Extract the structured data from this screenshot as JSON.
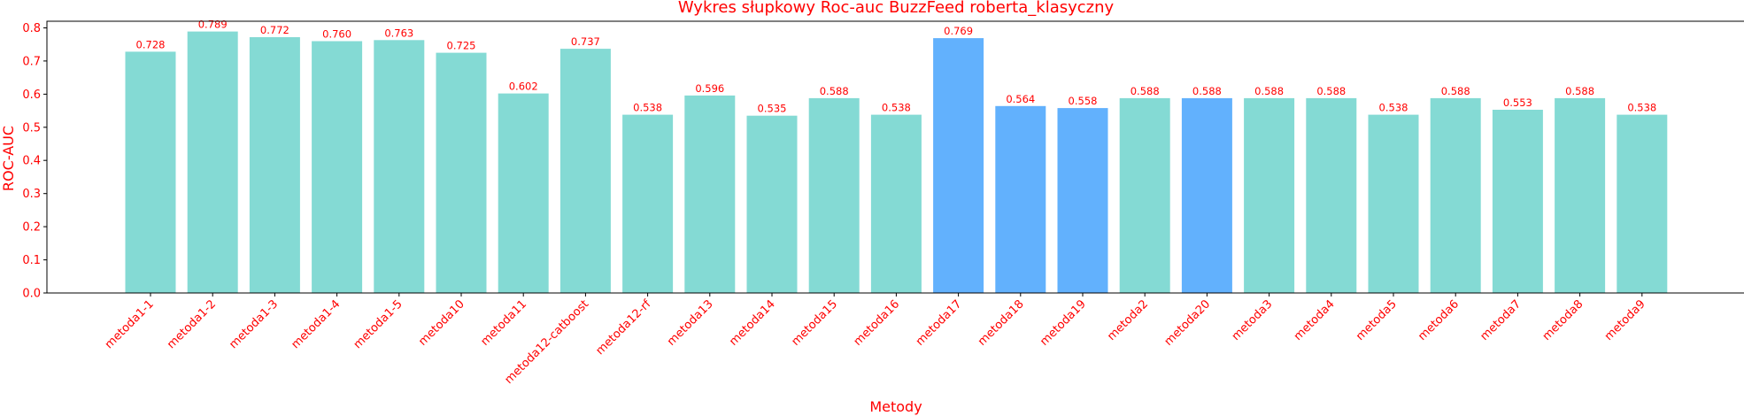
{
  "chart_data": {
    "type": "bar",
    "title": "Wykres słupkowy Roc-auc BuzzFeed roberta_klasyczny",
    "xlabel": "Metody",
    "ylabel": "ROC-AUC",
    "ylim": [
      0,
      0.82
    ],
    "yticks": [
      "0.0",
      "0.1",
      "0.2",
      "0.3",
      "0.4",
      "0.5",
      "0.6",
      "0.7",
      "0.8"
    ],
    "grid": false,
    "categories": [
      "metoda1-1",
      "metoda1-2",
      "metoda1-3",
      "metoda1-4",
      "metoda1-5",
      "metoda10",
      "metoda11",
      "metoda12-catboost",
      "metoda12-rf",
      "metoda13",
      "metoda14",
      "metoda15",
      "metoda16",
      "metoda17",
      "metoda18",
      "metoda19",
      "metoda2",
      "metoda20",
      "metoda3",
      "metoda4",
      "metoda5",
      "metoda6",
      "metoda7",
      "metoda8",
      "metoda9"
    ],
    "values": [
      0.728,
      0.789,
      0.772,
      0.76,
      0.763,
      0.725,
      0.602,
      0.737,
      0.538,
      0.596,
      0.535,
      0.588,
      0.538,
      0.769,
      0.564,
      0.558,
      0.588,
      0.588,
      0.588,
      0.588,
      0.538,
      0.588,
      0.553,
      0.588,
      0.538
    ],
    "value_labels": [
      "0.728",
      "0.789",
      "0.772",
      "0.760",
      "0.763",
      "0.725",
      "0.602",
      "0.737",
      "0.538",
      "0.596",
      "0.535",
      "0.588",
      "0.538",
      "0.769",
      "0.564",
      "0.558",
      "0.588",
      "0.588",
      "0.588",
      "0.588",
      "0.538",
      "0.588",
      "0.553",
      "0.588",
      "0.538"
    ],
    "highlighted": [
      "metoda17",
      "metoda18",
      "metoda19",
      "metoda20"
    ],
    "colors": {
      "bar": "#84dad4",
      "highlight": "#62b1fd",
      "text": "#ff0000",
      "axis": "#000000"
    }
  }
}
